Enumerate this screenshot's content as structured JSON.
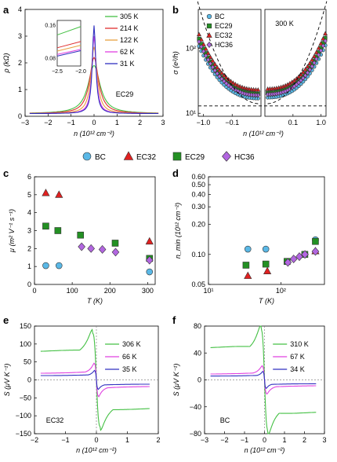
{
  "chart_data": [
    {
      "panel": "a",
      "type": "line",
      "xlabel": "n (10¹² cm⁻²)",
      "ylabel": "ρ (kΩ)",
      "xlim": [
        -3,
        3
      ],
      "ylim": [
        0,
        4
      ],
      "xticks": [
        "−3",
        "−2",
        "−1",
        "0",
        "1",
        "2",
        "3"
      ],
      "yticks": [
        "0",
        "1",
        "2",
        "3",
        "4"
      ],
      "annotation": "EC29",
      "legend": [
        "305 K",
        "214 K",
        "122 K",
        "62 K",
        "31 K"
      ],
      "series": [
        {
          "name": "305 K",
          "color": "#44c044",
          "peak": 1.9,
          "width": 0.32
        },
        {
          "name": "214 K",
          "color": "#e03030",
          "peak": 2.2,
          "width": 0.24
        },
        {
          "name": "122 K",
          "color": "#e8a040",
          "peak": 2.6,
          "width": 0.16
        },
        {
          "name": "62 K",
          "color": "#e040e0",
          "peak": 3.0,
          "width": 0.11
        },
        {
          "name": "31 K",
          "color": "#3030c0",
          "peak": 3.4,
          "width": 0.09
        }
      ],
      "inset": {
        "xlim": [
          -2.5,
          -2.0
        ],
        "ylim": [
          0.06,
          0.17
        ],
        "xticks": [
          "−2.5",
          "−2.0"
        ],
        "yticks": [
          "0.08",
          "0.16"
        ],
        "series": [
          {
            "color": "#44c044",
            "y": [
              0.135,
              0.155
            ]
          },
          {
            "color": "#e03030",
            "y": [
              0.104,
              0.119
            ]
          },
          {
            "color": "#e8a040",
            "y": [
              0.096,
              0.11
            ]
          },
          {
            "color": "#e040e0",
            "y": [
              0.088,
              0.1
            ]
          },
          {
            "color": "#3030c0",
            "y": [
              0.084,
              0.097
            ]
          }
        ]
      }
    },
    {
      "panel": "b",
      "type": "scatter",
      "xlabel": "n (10¹² cm⁻²)",
      "ylabel": "σ (e²/h)",
      "yscale": "log",
      "ylim": [
        9,
        400
      ],
      "xticks_left": [
        "−1.0",
        "−0.1"
      ],
      "xticks_right": [
        "0.1",
        "1.0"
      ],
      "yticks": [
        "10¹",
        "10²"
      ],
      "annotation": "300 K",
      "legend": [
        "BC",
        "EC29",
        "EC32",
        "HC36"
      ],
      "series": [
        {
          "name": "BC",
          "color": "#5ab8e6",
          "marker": "circle",
          "min": 17,
          "top": 115
        },
        {
          "name": "EC29",
          "color": "#239023",
          "marker": "square",
          "min": 20,
          "top": 150
        },
        {
          "name": "EC32",
          "color": "#e02020",
          "marker": "triangle",
          "min": 23,
          "top": 175
        },
        {
          "name": "HC36",
          "color": "#b266e0",
          "marker": "diamond",
          "min": 19,
          "top": 135
        }
      ],
      "dashed_floor": 13
    },
    {
      "panel": "c",
      "type": "scatter",
      "xlabel": "T (K)",
      "ylabel": "μ (m² V⁻¹ s⁻¹)",
      "xlim": [
        0,
        320
      ],
      "ylim": [
        0,
        6
      ],
      "xticks": [
        "0",
        "100",
        "200",
        "300"
      ],
      "yticks": [
        "0",
        "1",
        "2",
        "3",
        "4",
        "5",
        "6"
      ],
      "series": [
        {
          "name": "BC",
          "color": "#5ab8e6",
          "marker": "circle",
          "points": [
            [
              30,
              1.05
            ],
            [
              65,
              1.05
            ],
            [
              305,
              0.7
            ]
          ]
        },
        {
          "name": "EC32",
          "color": "#e02020",
          "marker": "triangle",
          "points": [
            [
              30,
              5.1
            ],
            [
              65,
              5.0
            ],
            [
              305,
              2.4
            ]
          ]
        },
        {
          "name": "EC29",
          "color": "#239023",
          "marker": "square",
          "points": [
            [
              30,
              3.25
            ],
            [
              62,
              3.0
            ],
            [
              122,
              2.75
            ],
            [
              214,
              2.3
            ],
            [
              305,
              1.45
            ]
          ]
        },
        {
          "name": "HC36",
          "color": "#b266e0",
          "marker": "diamond",
          "points": [
            [
              125,
              2.1
            ],
            [
              150,
              2.0
            ],
            [
              180,
              1.95
            ],
            [
              215,
              1.8
            ],
            [
              305,
              1.35
            ]
          ]
        }
      ]
    },
    {
      "panel": "d",
      "type": "scatter",
      "xlabel": "T (K)",
      "ylabel": "n_min (10¹² cm⁻²)",
      "xscale": "log",
      "yscale": "log",
      "xlim": [
        10,
        400
      ],
      "ylim": [
        0.05,
        0.6
      ],
      "xticks": [
        "10¹",
        "10²"
      ],
      "yticks": [
        "0.05",
        "0.10",
        "0.20",
        "0.30",
        "0.40",
        "0.50",
        "0.60"
      ],
      "series": [
        {
          "name": "BC",
          "color": "#5ab8e6",
          "marker": "circle",
          "points": [
            [
              35,
              0.113
            ],
            [
              62,
              0.113
            ],
            [
              300,
              0.14
            ]
          ]
        },
        {
          "name": "EC32",
          "color": "#e02020",
          "marker": "triangle",
          "points": [
            [
              35,
              0.061
            ],
            [
              65,
              0.068
            ],
            [
              300,
              0.108
            ]
          ]
        },
        {
          "name": "EC29",
          "color": "#239023",
          "marker": "square",
          "points": [
            [
              33,
              0.078
            ],
            [
              62,
              0.08
            ],
            [
              122,
              0.085
            ],
            [
              214,
              0.1
            ],
            [
              300,
              0.135
            ]
          ]
        },
        {
          "name": "HC36",
          "color": "#b266e0",
          "marker": "diamond",
          "points": [
            [
              125,
              0.083
            ],
            [
              150,
              0.09
            ],
            [
              180,
              0.095
            ],
            [
              215,
              0.1
            ],
            [
              300,
              0.107
            ]
          ]
        }
      ]
    },
    {
      "panel": "e",
      "type": "line",
      "xlabel": "n (10¹² cm⁻²)",
      "ylabel": "S (μV K⁻¹)",
      "xlim": [
        -2,
        2
      ],
      "ylim": [
        -150,
        150
      ],
      "xticks": [
        "−2",
        "−1",
        "0",
        "1",
        "2"
      ],
      "yticks": [
        "150",
        "100",
        "50",
        "0",
        "−50",
        "−100",
        "−150"
      ],
      "annotation": "EC32",
      "legend": [
        "306 K",
        "66 K",
        "35 K"
      ],
      "series": [
        {
          "name": "306 K",
          "color": "#44c044",
          "amp": 130,
          "width": 0.12,
          "tail": 0.55
        },
        {
          "name": "66 K",
          "color": "#e040e0",
          "amp": 45,
          "width": 0.06,
          "tail": 0.38
        },
        {
          "name": "35 K",
          "color": "#3030c0",
          "amp": 25,
          "width": 0.05,
          "tail": 0.45
        }
      ]
    },
    {
      "panel": "f",
      "type": "line",
      "xlabel": "n (10¹² cm⁻²)",
      "ylabel": "S (μV K⁻¹)",
      "xlim": [
        -3,
        3
      ],
      "ylim": [
        -80,
        80
      ],
      "xticks": [
        "−3",
        "−2",
        "−1",
        "0",
        "1",
        "2",
        "3"
      ],
      "yticks": [
        "80",
        "40",
        "0",
        "−40",
        "−80"
      ],
      "annotation": "BC",
      "legend": [
        "310 K",
        "67 K",
        "34 K"
      ],
      "series": [
        {
          "name": "310 K",
          "color": "#44c044",
          "amp": 75,
          "width": 0.17,
          "tail": 0.58
        },
        {
          "name": "67 K",
          "color": "#e040e0",
          "amp": 20,
          "width": 0.1,
          "tail": 0.4
        },
        {
          "name": "34 K",
          "color": "#3030c0",
          "amp": 12,
          "width": 0.07,
          "tail": 0.45
        }
      ]
    }
  ]
}
